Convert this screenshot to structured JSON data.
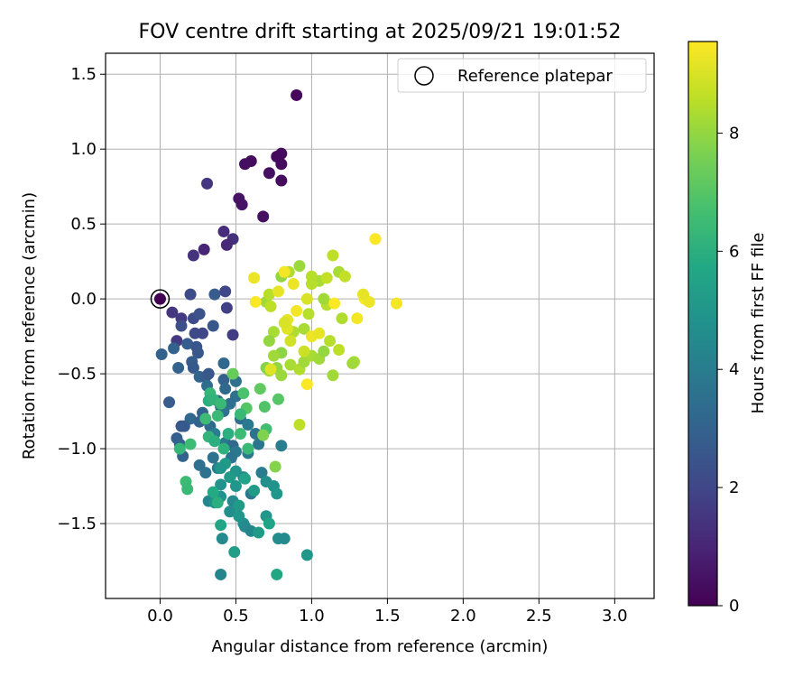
{
  "chart_data": {
    "type": "scatter",
    "title": "FOV centre drift starting at 2025/09/21 19:01:52",
    "xlabel": "Angular distance from reference (arcmin)",
    "ylabel": "Rotation from reference (arcmin)",
    "xlim": [
      -0.36,
      3.26
    ],
    "ylim": [
      -2.0,
      1.64
    ],
    "xticks": [
      0.0,
      0.5,
      1.0,
      1.5,
      2.0,
      2.5,
      3.0
    ],
    "xtick_labels": [
      "0.0",
      "0.5",
      "1.0",
      "1.5",
      "2.0",
      "2.5",
      "3.0"
    ],
    "yticks": [
      -1.5,
      -1.0,
      -0.5,
      0.0,
      0.5,
      1.0,
      1.5
    ],
    "ytick_labels": [
      "−1.5",
      "−1.0",
      "−0.5",
      "0.0",
      "0.5",
      "1.0",
      "1.5"
    ],
    "grid": true,
    "legend": {
      "position": "top-right",
      "entries": [
        "Reference platepar"
      ]
    },
    "reference_point": {
      "x": 0.0,
      "y": 0.0
    },
    "colorbar": {
      "label": "Hours from first FF file",
      "range": [
        0,
        9.55
      ],
      "ticks": [
        0,
        2,
        4,
        6,
        8
      ],
      "tick_labels": [
        "0",
        "2",
        "4",
        "6",
        "8"
      ]
    },
    "points": [
      [
        0.9,
        1.36,
        0.2
      ],
      [
        0.8,
        0.97,
        0.3
      ],
      [
        0.77,
        0.95,
        0.25
      ],
      [
        0.8,
        0.9,
        0.3
      ],
      [
        0.6,
        0.92,
        0.3
      ],
      [
        0.56,
        0.9,
        0.35
      ],
      [
        0.72,
        0.84,
        0.4
      ],
      [
        0.8,
        0.79,
        0.3
      ],
      [
        0.52,
        0.67,
        0.5
      ],
      [
        0.54,
        0.63,
        0.5
      ],
      [
        0.68,
        0.55,
        0.4
      ],
      [
        0.31,
        0.77,
        1.5
      ],
      [
        0.42,
        0.45,
        1.2
      ],
      [
        0.48,
        0.4,
        1.3
      ],
      [
        0.44,
        0.36,
        1.1
      ],
      [
        0.29,
        0.33,
        1.0
      ],
      [
        0.22,
        0.29,
        1.4
      ],
      [
        0.2,
        0.03,
        2.2
      ],
      [
        0.36,
        0.03,
        2.8
      ],
      [
        0.43,
        0.05,
        2.0
      ],
      [
        0.44,
        -0.06,
        1.8
      ],
      [
        0.08,
        -0.09,
        1.5
      ],
      [
        0.14,
        -0.13,
        1.6
      ],
      [
        0.22,
        -0.13,
        2.2
      ],
      [
        0.26,
        -0.1,
        2.4
      ],
      [
        0.14,
        -0.18,
        2.3
      ],
      [
        0.35,
        -0.18,
        2.6
      ],
      [
        0.23,
        -0.23,
        2.1
      ],
      [
        0.28,
        -0.23,
        2.0
      ],
      [
        0.48,
        -0.24,
        1.7
      ],
      [
        0.11,
        -0.28,
        1.6
      ],
      [
        0.18,
        -0.3,
        2.8
      ],
      [
        0.09,
        -0.33,
        3.0
      ],
      [
        0.24,
        -0.32,
        2.5
      ],
      [
        0.25,
        -0.36,
        2.6
      ],
      [
        0.01,
        -0.37,
        3.0
      ],
      [
        0.21,
        -0.42,
        2.8
      ],
      [
        0.42,
        -0.43,
        3.2
      ],
      [
        0.12,
        -0.46,
        3.0
      ],
      [
        0.22,
        -0.46,
        2.7
      ],
      [
        0.26,
        -0.52,
        3.1
      ],
      [
        0.3,
        -0.52,
        2.8
      ],
      [
        0.32,
        -0.5,
        2.6
      ],
      [
        0.42,
        -0.54,
        3.0
      ],
      [
        0.5,
        -0.55,
        3.5
      ],
      [
        0.43,
        -0.6,
        3.2
      ],
      [
        0.31,
        -0.58,
        3.4
      ],
      [
        0.5,
        -0.65,
        3.5
      ],
      [
        0.06,
        -0.69,
        2.8
      ],
      [
        0.38,
        -0.68,
        3.3
      ],
      [
        0.46,
        -0.7,
        3.5
      ],
      [
        0.4,
        -0.72,
        3.2
      ],
      [
        0.28,
        -0.76,
        3.0
      ],
      [
        0.42,
        -0.75,
        3.6
      ],
      [
        0.2,
        -0.8,
        3.2
      ],
      [
        0.53,
        -0.8,
        3.4
      ],
      [
        0.26,
        -0.82,
        3.0
      ],
      [
        0.14,
        -0.85,
        2.6
      ],
      [
        0.16,
        -0.85,
        2.7
      ],
      [
        0.33,
        -0.85,
        3.3
      ],
      [
        0.58,
        -0.84,
        3.9
      ],
      [
        0.63,
        -0.9,
        3.6
      ],
      [
        0.11,
        -0.93,
        2.9
      ],
      [
        0.36,
        -0.9,
        4.0
      ],
      [
        0.43,
        -0.96,
        3.8
      ],
      [
        0.13,
        -0.97,
        3.0
      ],
      [
        0.48,
        -0.98,
        3.2
      ],
      [
        0.65,
        -0.97,
        3.7
      ],
      [
        0.8,
        -0.98,
        4.0
      ],
      [
        0.5,
        -1.02,
        3.8
      ],
      [
        0.58,
        -1.03,
        3.9
      ],
      [
        0.15,
        -1.05,
        3.0
      ],
      [
        0.35,
        -1.06,
        3.6
      ],
      [
        0.47,
        -1.06,
        3.6
      ],
      [
        0.26,
        -1.11,
        3.5
      ],
      [
        0.38,
        -1.13,
        4.0
      ],
      [
        0.3,
        -1.16,
        3.6
      ],
      [
        0.67,
        -1.16,
        4.0
      ],
      [
        0.55,
        -1.19,
        4.2
      ],
      [
        0.6,
        -1.3,
        3.8
      ],
      [
        0.43,
        -1.1,
        5.2
      ],
      [
        0.4,
        -1.13,
        5.0
      ],
      [
        0.5,
        -1.15,
        4.9
      ],
      [
        0.46,
        -1.19,
        5.2
      ],
      [
        0.56,
        -1.2,
        5.5
      ],
      [
        0.4,
        -1.24,
        4.8
      ],
      [
        0.5,
        -1.25,
        5.0
      ],
      [
        0.7,
        -1.22,
        4.7
      ],
      [
        0.75,
        -1.25,
        4.8
      ],
      [
        0.62,
        -1.28,
        5.2
      ],
      [
        0.77,
        -1.3,
        5.0
      ],
      [
        0.4,
        -1.32,
        4.8
      ],
      [
        0.32,
        -1.35,
        4.3
      ],
      [
        0.36,
        -1.36,
        4.8
      ],
      [
        0.48,
        -1.35,
        4.5
      ],
      [
        0.52,
        -1.38,
        5.2
      ],
      [
        0.46,
        -1.42,
        4.7
      ],
      [
        0.52,
        -1.45,
        5.0
      ],
      [
        0.7,
        -1.45,
        5.0
      ],
      [
        0.55,
        -1.5,
        4.8
      ],
      [
        0.72,
        -1.5,
        5.5
      ],
      [
        0.56,
        -1.52,
        4.5
      ],
      [
        0.6,
        -1.55,
        4.4
      ],
      [
        0.65,
        -1.56,
        5.2
      ],
      [
        0.41,
        -1.6,
        4.5
      ],
      [
        0.78,
        -1.6,
        4.6
      ],
      [
        0.82,
        -1.6,
        4.5
      ],
      [
        0.4,
        -1.84,
        4.3
      ],
      [
        0.97,
        -1.71,
        5.0
      ],
      [
        0.49,
        -1.69,
        5.3
      ],
      [
        0.77,
        -1.84,
        5.7
      ],
      [
        0.33,
        -0.63,
        6.3
      ],
      [
        0.32,
        -0.68,
        6.0
      ],
      [
        0.35,
        -0.67,
        6.2
      ],
      [
        0.4,
        -0.7,
        6.4
      ],
      [
        0.3,
        -0.8,
        6.5
      ],
      [
        0.38,
        -0.78,
        6.4
      ],
      [
        0.45,
        -0.9,
        6.0
      ],
      [
        0.32,
        -0.92,
        6.2
      ],
      [
        0.36,
        -0.95,
        6.0
      ],
      [
        0.2,
        -0.97,
        6.5
      ],
      [
        0.13,
        -1.0,
        6.3
      ],
      [
        0.53,
        -0.9,
        6.5
      ],
      [
        0.55,
        -0.63,
        6.8
      ],
      [
        0.57,
        -0.73,
        7.0
      ],
      [
        0.53,
        -0.77,
        6.4
      ],
      [
        0.69,
        -0.72,
        6.9
      ],
      [
        0.7,
        -0.87,
        6.6
      ],
      [
        0.78,
        -0.67,
        7.0
      ],
      [
        0.66,
        -0.6,
        7.2
      ],
      [
        0.48,
        -0.5,
        7.3
      ],
      [
        0.42,
        -1.0,
        6.1
      ],
      [
        0.58,
        -1.0,
        6.4
      ],
      [
        0.17,
        -1.22,
        6.5
      ],
      [
        0.18,
        -1.27,
        6.4
      ],
      [
        0.35,
        -1.29,
        5.8
      ],
      [
        0.38,
        -1.36,
        6.0
      ],
      [
        0.4,
        -1.51,
        5.6
      ],
      [
        0.72,
        -0.48,
        8.2
      ],
      [
        0.77,
        -0.46,
        8.0
      ],
      [
        0.8,
        -0.51,
        8.1
      ],
      [
        0.86,
        -0.44,
        8.3
      ],
      [
        0.92,
        -0.47,
        8.4
      ],
      [
        0.95,
        -0.42,
        8.2
      ],
      [
        1.0,
        -0.38,
        8.3
      ],
      [
        1.05,
        -0.4,
        8.2
      ],
      [
        1.08,
        -0.35,
        8.0
      ],
      [
        1.12,
        -0.28,
        8.5
      ],
      [
        1.14,
        -0.51,
        8.2
      ],
      [
        1.18,
        -0.34,
        8.6
      ],
      [
        1.28,
        -0.42,
        8.3
      ],
      [
        1.2,
        -0.13,
        8.4
      ],
      [
        1.1,
        -0.04,
        8.5
      ],
      [
        1.08,
        0.0,
        8.2
      ],
      [
        1.05,
        0.12,
        8.3
      ],
      [
        1.1,
        0.14,
        8.7
      ],
      [
        1.0,
        0.15,
        8.5
      ],
      [
        0.92,
        0.22,
        8.1
      ],
      [
        0.85,
        0.18,
        8.4
      ],
      [
        0.8,
        0.15,
        8.0
      ],
      [
        1.14,
        0.29,
        8.6
      ],
      [
        1.18,
        0.18,
        8.3
      ],
      [
        1.22,
        0.15,
        8.7
      ],
      [
        1.0,
        0.1,
        8.5
      ],
      [
        0.98,
        -0.1,
        8.5
      ],
      [
        0.95,
        -0.2,
        8.3
      ],
      [
        0.88,
        -0.22,
        8.4
      ],
      [
        0.75,
        -0.22,
        8.3
      ],
      [
        0.72,
        -0.28,
        8.0
      ],
      [
        0.7,
        -0.02,
        8.2
      ],
      [
        0.72,
        0.03,
        8.5
      ],
      [
        0.73,
        -0.05,
        8.6
      ],
      [
        0.8,
        -0.36,
        7.9
      ],
      [
        0.75,
        -0.38,
        8.2
      ],
      [
        0.7,
        -0.46,
        7.8
      ],
      [
        0.76,
        -1.12,
        7.8
      ],
      [
        0.68,
        -0.91,
        7.7
      ],
      [
        0.92,
        -0.84,
        8.6
      ],
      [
        1.27,
        -0.43,
        8.2
      ],
      [
        0.62,
        0.14,
        9.3
      ],
      [
        0.63,
        -0.02,
        9.5
      ],
      [
        0.82,
        0.18,
        9.4
      ],
      [
        0.78,
        0.05,
        9.2
      ],
      [
        0.88,
        0.1,
        9.3
      ],
      [
        0.84,
        -0.14,
        9.2
      ],
      [
        0.9,
        -0.08,
        9.4
      ],
      [
        0.97,
        0.0,
        9.0
      ],
      [
        1.0,
        -0.25,
        9.3
      ],
      [
        1.05,
        -0.23,
        9.2
      ],
      [
        1.15,
        -0.03,
        9.5
      ],
      [
        1.3,
        -0.13,
        9.4
      ],
      [
        1.35,
        0.0,
        9.5
      ],
      [
        1.38,
        -0.02,
        9.3
      ],
      [
        1.34,
        0.03,
        9.2
      ],
      [
        1.42,
        0.4,
        9.5
      ],
      [
        1.56,
        -0.03,
        9.4
      ],
      [
        0.97,
        -0.57,
        9.5
      ],
      [
        0.73,
        -0.47,
        9.1
      ],
      [
        0.84,
        -0.2,
        9.1
      ],
      [
        0.82,
        -0.16,
        9.0
      ],
      [
        0.95,
        -0.35,
        8.8
      ],
      [
        0.86,
        -0.28,
        8.9
      ]
    ]
  }
}
